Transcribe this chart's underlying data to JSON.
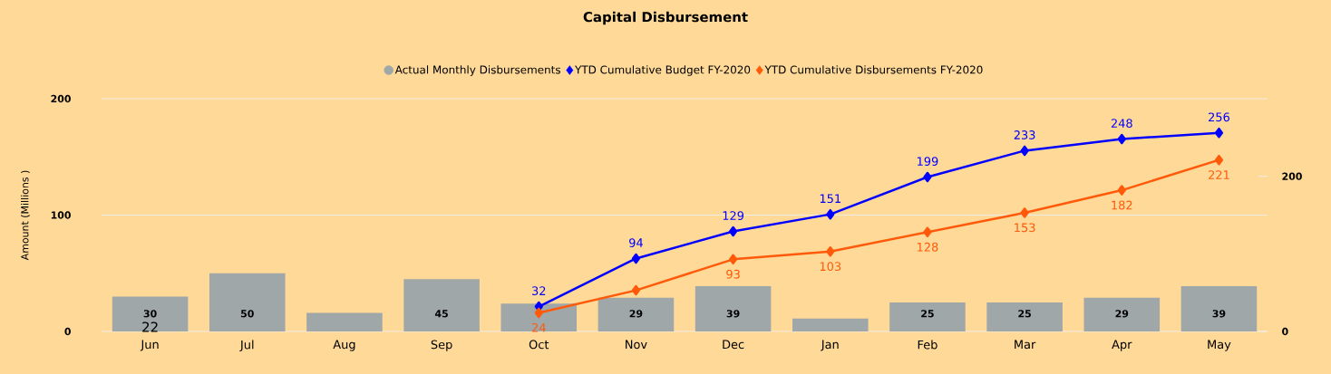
{
  "chart_data": {
    "type": "bar",
    "title": "Capital Disbursement",
    "ylabel": "Amount (Millions )",
    "categories": [
      "Jun",
      "Jul",
      "Aug",
      "Sep",
      "Oct",
      "Nov",
      "Dec",
      "Jan",
      "Feb",
      "Mar",
      "Apr",
      "May"
    ],
    "series": [
      {
        "name": "Actual Monthly Disbursements",
        "color": "#a0a7a8",
        "values": [
          30,
          50,
          16,
          45,
          24,
          29,
          39,
          11,
          25,
          25,
          29,
          39
        ],
        "value_labels": [
          "30",
          "50",
          null,
          "45",
          null,
          "29",
          "39",
          null,
          "25",
          "25",
          "29",
          "39"
        ]
      },
      {
        "name": "YTD Cumulative Budget FY-2020",
        "type": "line",
        "axis": "y2",
        "color": "#0000ff",
        "values": [
          null,
          null,
          null,
          null,
          32,
          94,
          129,
          151,
          199,
          233,
          248,
          256
        ],
        "value_labels": [
          null,
          null,
          null,
          null,
          "32",
          "94",
          "129",
          "151",
          "199",
          "233",
          "248",
          "256"
        ]
      },
      {
        "name": "YTD Cumulative Disbursements FY-2020",
        "type": "line",
        "axis": "y2",
        "color": "#ff5a0a",
        "values": [
          null,
          null,
          null,
          null,
          24,
          53,
          93,
          103,
          128,
          153,
          182,
          221
        ],
        "value_labels": [
          null,
          null,
          null,
          null,
          "24",
          null,
          "93",
          "103",
          "128",
          "153",
          "182",
          "221"
        ]
      }
    ],
    "ylim": [
      0,
      200
    ],
    "yticks": [
      0,
      100,
      200
    ],
    "y2lim": [
      0,
      300
    ],
    "y2ticks": [
      0,
      200
    ],
    "annotations": [
      "22"
    ],
    "grid": "y",
    "legend": "top",
    "marker": "diamond",
    "line_style": "solid"
  }
}
